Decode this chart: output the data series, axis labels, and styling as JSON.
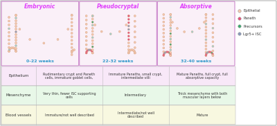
{
  "stages": [
    "Embryonic",
    "Pseudocryptal",
    "Absorptive"
  ],
  "stage_color": "#e040fb",
  "weeks": [
    "0-22 weeks",
    "22-32 weeks",
    "32-40 weeks"
  ],
  "weeks_color": "#3399cc",
  "panel_bg": "#faf0f8",
  "panel_border": "#cc88cc",
  "outer_bg": "#ffffff",
  "legend_items": [
    "Epithelial",
    "Paneth",
    "Precursors",
    "Lgr5+ ISC"
  ],
  "legend_colors": [
    "#f5c8b0",
    "#e8507a",
    "#3aaa70",
    "#8899bb"
  ],
  "table_rows": [
    {
      "label": "Epithelium",
      "bg": "#f8e8f8",
      "values": [
        "Rudimentary crypt and Paneth\ncells, immature goblet cells,",
        "Immature Paneths, small crypt,\nintermediate villi",
        "Mature Paneths, full crypt, full\nabsorptive capacity"
      ]
    },
    {
      "label": "Mesenchyme",
      "bg": "#e8f8e8",
      "values": [
        "Very thin, fewer ISC supporting\ncells",
        "Intermediary",
        "Thick mesenchyme with both\nmuscular layers below"
      ]
    },
    {
      "label": "Blood vessels",
      "bg": "#f8f8e0",
      "values": [
        "Immature/not well described",
        "Intermediate/not well\ndescribed",
        "Mature"
      ]
    }
  ],
  "epi_color": "#f5c8b0",
  "epi_border": "#d8a888",
  "paneth_color": "#e8507a",
  "precursor_color": "#3aaa70",
  "isc_color": "#8899bb",
  "goblet_color": "#99d4d4",
  "fig_width": 4.0,
  "fig_height": 1.82,
  "dpi": 100
}
